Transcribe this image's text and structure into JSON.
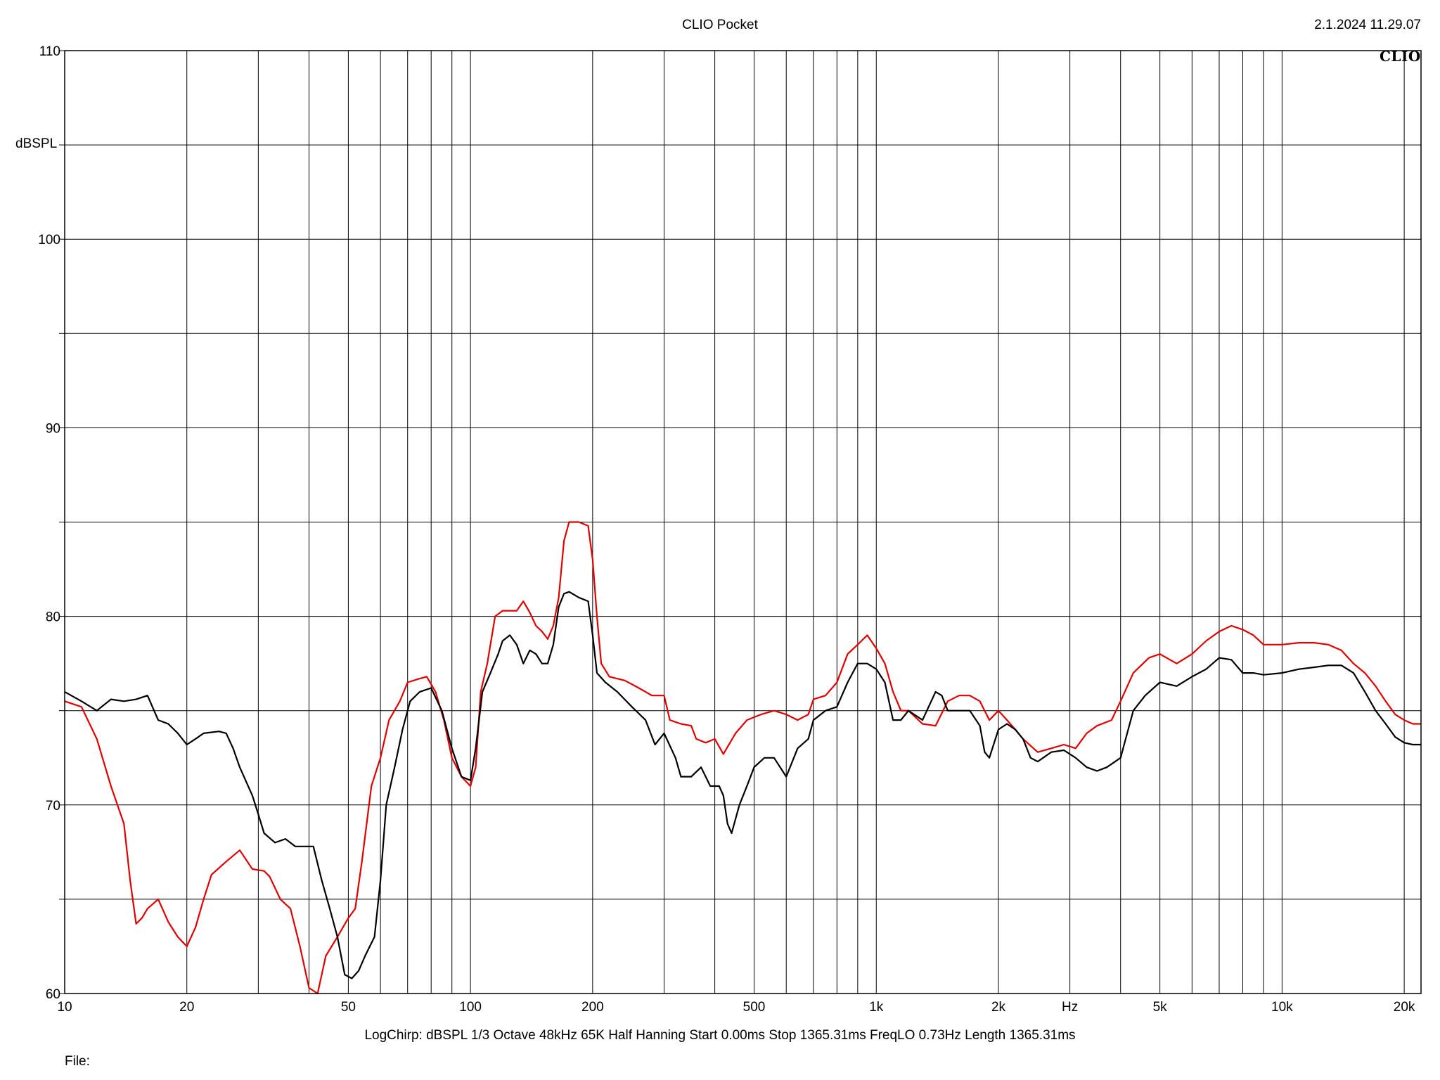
{
  "header": {
    "title": "CLIO Pocket",
    "timestamp": "2.1.2024 11.29.07",
    "logo_text": "CLIO"
  },
  "footer": {
    "settings": "LogChirp:  dBSPL   1/3 Octave   48kHz   65K   Half Hanning   Start 0.00ms    Stop 1365.31ms    FreqLO 0.73Hz    Length 1365.31ms",
    "file_label": "File:"
  },
  "chart_data": {
    "type": "line",
    "title": "CLIO Pocket",
    "xlabel": "Hz",
    "ylabel": "dBSPL",
    "xscale": "log",
    "xlim": [
      10,
      22000
    ],
    "ylim": [
      60,
      110
    ],
    "grid": true,
    "colors": {
      "grid": "#000000",
      "background": "#ffffff"
    },
    "x_ticks": [
      {
        "value": 10,
        "label": "10"
      },
      {
        "value": 20,
        "label": "20"
      },
      {
        "value": 50,
        "label": "50"
      },
      {
        "value": 100,
        "label": "100"
      },
      {
        "value": 200,
        "label": "200"
      },
      {
        "value": 500,
        "label": "500"
      },
      {
        "value": 1000,
        "label": "1k"
      },
      {
        "value": 2000,
        "label": "2k"
      },
      {
        "value": 5000,
        "label": "5k"
      },
      {
        "value": 10000,
        "label": "10k"
      },
      {
        "value": 20000,
        "label": "20k"
      }
    ],
    "x_unit_label": {
      "value": 3000,
      "label": "Hz"
    },
    "y_ticks": [
      {
        "value": 110,
        "label": "110"
      },
      {
        "value": 100,
        "label": "100"
      },
      {
        "value": 90,
        "label": "90"
      },
      {
        "value": 80,
        "label": "80"
      },
      {
        "value": 70,
        "label": "70"
      },
      {
        "value": 60,
        "label": "60"
      }
    ],
    "series": [
      {
        "color": "#e00000",
        "points": [
          [
            10,
            75.5
          ],
          [
            11,
            75.2
          ],
          [
            12,
            73.5
          ],
          [
            13,
            71
          ],
          [
            14,
            69
          ],
          [
            14.5,
            66
          ],
          [
            15,
            63.7
          ],
          [
            15.5,
            64
          ],
          [
            16,
            64.5
          ],
          [
            17,
            65
          ],
          [
            18,
            63.8
          ],
          [
            19,
            63
          ],
          [
            20,
            62.5
          ],
          [
            21,
            63.5
          ],
          [
            22,
            65
          ],
          [
            23,
            66.3
          ],
          [
            25,
            67
          ],
          [
            27,
            67.6
          ],
          [
            29,
            66.6
          ],
          [
            31,
            66.5
          ],
          [
            32,
            66.2
          ],
          [
            34,
            65
          ],
          [
            36,
            64.5
          ],
          [
            38,
            62.5
          ],
          [
            40,
            60.3
          ],
          [
            42,
            60
          ],
          [
            44,
            62
          ],
          [
            47,
            63
          ],
          [
            50,
            64
          ],
          [
            52,
            64.5
          ],
          [
            54,
            67
          ],
          [
            57,
            71
          ],
          [
            60,
            72.5
          ],
          [
            63,
            74.5
          ],
          [
            67,
            75.5
          ],
          [
            70,
            76.5
          ],
          [
            75,
            76.7
          ],
          [
            78,
            76.8
          ],
          [
            82,
            76
          ],
          [
            86,
            74.5
          ],
          [
            90,
            72.5
          ],
          [
            95,
            71.5
          ],
          [
            100,
            71
          ],
          [
            103,
            72
          ],
          [
            106,
            76
          ],
          [
            110,
            77.5
          ],
          [
            115,
            80
          ],
          [
            120,
            80.3
          ],
          [
            125,
            80.3
          ],
          [
            130,
            80.3
          ],
          [
            135,
            80.8
          ],
          [
            140,
            80.2
          ],
          [
            145,
            79.5
          ],
          [
            150,
            79.2
          ],
          [
            155,
            78.8
          ],
          [
            160,
            79.5
          ],
          [
            165,
            81
          ],
          [
            170,
            84
          ],
          [
            175,
            85
          ],
          [
            185,
            85
          ],
          [
            195,
            84.8
          ],
          [
            200,
            83
          ],
          [
            205,
            80
          ],
          [
            210,
            77.5
          ],
          [
            220,
            76.8
          ],
          [
            240,
            76.6
          ],
          [
            260,
            76.2
          ],
          [
            280,
            75.8
          ],
          [
            300,
            75.8
          ],
          [
            310,
            74.5
          ],
          [
            330,
            74.3
          ],
          [
            350,
            74.2
          ],
          [
            360,
            73.5
          ],
          [
            380,
            73.3
          ],
          [
            400,
            73.5
          ],
          [
            420,
            72.7
          ],
          [
            450,
            73.8
          ],
          [
            480,
            74.5
          ],
          [
            520,
            74.8
          ],
          [
            560,
            75
          ],
          [
            600,
            74.8
          ],
          [
            640,
            74.5
          ],
          [
            680,
            74.8
          ],
          [
            700,
            75.6
          ],
          [
            750,
            75.8
          ],
          [
            800,
            76.5
          ],
          [
            850,
            78
          ],
          [
            900,
            78.5
          ],
          [
            950,
            79
          ],
          [
            1000,
            78.3
          ],
          [
            1050,
            77.5
          ],
          [
            1100,
            76
          ],
          [
            1150,
            75
          ],
          [
            1200,
            75
          ],
          [
            1300,
            74.3
          ],
          [
            1400,
            74.2
          ],
          [
            1500,
            75.5
          ],
          [
            1600,
            75.8
          ],
          [
            1700,
            75.8
          ],
          [
            1800,
            75.5
          ],
          [
            1900,
            74.5
          ],
          [
            2000,
            75
          ],
          [
            2100,
            74.5
          ],
          [
            2200,
            74
          ],
          [
            2300,
            73.5
          ],
          [
            2500,
            72.8
          ],
          [
            2700,
            73
          ],
          [
            2900,
            73.2
          ],
          [
            3100,
            73
          ],
          [
            3300,
            73.8
          ],
          [
            3500,
            74.2
          ],
          [
            3800,
            74.5
          ],
          [
            4000,
            75.5
          ],
          [
            4300,
            77
          ],
          [
            4700,
            77.8
          ],
          [
            5000,
            78
          ],
          [
            5500,
            77.5
          ],
          [
            6000,
            78
          ],
          [
            6500,
            78.7
          ],
          [
            7000,
            79.2
          ],
          [
            7500,
            79.5
          ],
          [
            8000,
            79.3
          ],
          [
            8500,
            79
          ],
          [
            9000,
            78.5
          ],
          [
            10000,
            78.5
          ],
          [
            11000,
            78.6
          ],
          [
            12000,
            78.6
          ],
          [
            13000,
            78.5
          ],
          [
            14000,
            78.2
          ],
          [
            15000,
            77.5
          ],
          [
            16000,
            77
          ],
          [
            17000,
            76.3
          ],
          [
            18000,
            75.5
          ],
          [
            19000,
            74.8
          ],
          [
            20000,
            74.5
          ],
          [
            21000,
            74.3
          ],
          [
            22000,
            74.3
          ]
        ]
      },
      {
        "color": "#000000",
        "points": [
          [
            10,
            76
          ],
          [
            11,
            75.5
          ],
          [
            12,
            75
          ],
          [
            13,
            75.6
          ],
          [
            14,
            75.5
          ],
          [
            15,
            75.6
          ],
          [
            16,
            75.8
          ],
          [
            17,
            74.5
          ],
          [
            18,
            74.3
          ],
          [
            19,
            73.8
          ],
          [
            20,
            73.2
          ],
          [
            21,
            73.5
          ],
          [
            22,
            73.8
          ],
          [
            24,
            73.9
          ],
          [
            25,
            73.8
          ],
          [
            26,
            73
          ],
          [
            27,
            72
          ],
          [
            29,
            70.5
          ],
          [
            30,
            69.5
          ],
          [
            31,
            68.5
          ],
          [
            33,
            68
          ],
          [
            35,
            68.2
          ],
          [
            37,
            67.8
          ],
          [
            39,
            67.8
          ],
          [
            41,
            67.8
          ],
          [
            43,
            66
          ],
          [
            45,
            64.5
          ],
          [
            47,
            63
          ],
          [
            49,
            61
          ],
          [
            51,
            60.8
          ],
          [
            53,
            61.2
          ],
          [
            55,
            62
          ],
          [
            58,
            63
          ],
          [
            60,
            66
          ],
          [
            62,
            70
          ],
          [
            65,
            72
          ],
          [
            68,
            74
          ],
          [
            71,
            75.5
          ],
          [
            75,
            76
          ],
          [
            80,
            76.2
          ],
          [
            85,
            75
          ],
          [
            90,
            73
          ],
          [
            95,
            71.5
          ],
          [
            100,
            71.3
          ],
          [
            103,
            73
          ],
          [
            107,
            76
          ],
          [
            112,
            77
          ],
          [
            117,
            78
          ],
          [
            120,
            78.7
          ],
          [
            125,
            79
          ],
          [
            130,
            78.5
          ],
          [
            135,
            77.5
          ],
          [
            140,
            78.2
          ],
          [
            145,
            78
          ],
          [
            150,
            77.5
          ],
          [
            155,
            77.5
          ],
          [
            160,
            78.5
          ],
          [
            165,
            80.5
          ],
          [
            170,
            81.2
          ],
          [
            175,
            81.3
          ],
          [
            185,
            81
          ],
          [
            195,
            80.8
          ],
          [
            200,
            79
          ],
          [
            205,
            77
          ],
          [
            215,
            76.5
          ],
          [
            230,
            76
          ],
          [
            250,
            75.2
          ],
          [
            270,
            74.5
          ],
          [
            285,
            73.2
          ],
          [
            300,
            73.8
          ],
          [
            320,
            72.5
          ],
          [
            330,
            71.5
          ],
          [
            350,
            71.5
          ],
          [
            370,
            72
          ],
          [
            390,
            71
          ],
          [
            410,
            71
          ],
          [
            420,
            70.5
          ],
          [
            430,
            69
          ],
          [
            440,
            68.5
          ],
          [
            460,
            70
          ],
          [
            480,
            71
          ],
          [
            500,
            72
          ],
          [
            530,
            72.5
          ],
          [
            560,
            72.5
          ],
          [
            600,
            71.5
          ],
          [
            640,
            73
          ],
          [
            680,
            73.5
          ],
          [
            700,
            74.5
          ],
          [
            750,
            75
          ],
          [
            800,
            75.2
          ],
          [
            850,
            76.5
          ],
          [
            900,
            77.5
          ],
          [
            950,
            77.5
          ],
          [
            1000,
            77.2
          ],
          [
            1050,
            76.5
          ],
          [
            1100,
            74.5
          ],
          [
            1150,
            74.5
          ],
          [
            1200,
            75
          ],
          [
            1300,
            74.5
          ],
          [
            1400,
            76
          ],
          [
            1450,
            75.8
          ],
          [
            1500,
            75
          ],
          [
            1600,
            75
          ],
          [
            1700,
            75
          ],
          [
            1800,
            74.2
          ],
          [
            1850,
            72.8
          ],
          [
            1900,
            72.5
          ],
          [
            2000,
            74
          ],
          [
            2100,
            74.3
          ],
          [
            2200,
            74
          ],
          [
            2300,
            73.5
          ],
          [
            2400,
            72.5
          ],
          [
            2500,
            72.3
          ],
          [
            2700,
            72.8
          ],
          [
            2900,
            72.9
          ],
          [
            3100,
            72.5
          ],
          [
            3300,
            72
          ],
          [
            3500,
            71.8
          ],
          [
            3700,
            72
          ],
          [
            4000,
            72.5
          ],
          [
            4300,
            75
          ],
          [
            4600,
            75.8
          ],
          [
            5000,
            76.5
          ],
          [
            5500,
            76.3
          ],
          [
            6000,
            76.8
          ],
          [
            6500,
            77.2
          ],
          [
            7000,
            77.8
          ],
          [
            7500,
            77.7
          ],
          [
            8000,
            77
          ],
          [
            8500,
            77
          ],
          [
            9000,
            76.9
          ],
          [
            10000,
            77
          ],
          [
            11000,
            77.2
          ],
          [
            12000,
            77.3
          ],
          [
            13000,
            77.4
          ],
          [
            14000,
            77.4
          ],
          [
            15000,
            77
          ],
          [
            16000,
            76
          ],
          [
            17000,
            75
          ],
          [
            18000,
            74.3
          ],
          [
            19000,
            73.6
          ],
          [
            20000,
            73.3
          ],
          [
            21000,
            73.2
          ],
          [
            22000,
            73.2
          ]
        ]
      }
    ]
  }
}
